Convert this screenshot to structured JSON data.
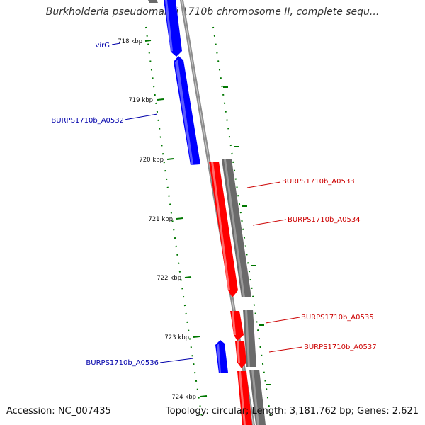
{
  "title": "Burkholderia pseudomallei 1710b chromosome II, complete sequ...",
  "accession": "Accession: NC_007435",
  "summary": "Topology: circular; Length: 3,181,762 bp; Genes: 2,621",
  "colors": {
    "forward": "#ff0000",
    "reverse": "#0000ff",
    "cds": "#6a6a6a",
    "backbone": "#8c8c8c",
    "ticks": "#007700"
  },
  "ticks": [
    "718 kbp",
    "719 kbp",
    "720 kbp",
    "721 kbp",
    "722 kbp",
    "723 kbp",
    "724 kbp"
  ],
  "genes": [
    {
      "label": "virG",
      "strand": "reverse"
    },
    {
      "label": "BURPS1710b_A0532",
      "strand": "reverse"
    },
    {
      "label": "BURPS1710b_A0533",
      "strand": "forward"
    },
    {
      "label": "BURPS1710b_A0534",
      "strand": "forward"
    },
    {
      "label": "BURPS1710b_A0535",
      "strand": "forward"
    },
    {
      "label": "BURPS1710b_A0537",
      "strand": "forward"
    },
    {
      "label": "BURPS1710b_A0536",
      "strand": "reverse"
    }
  ]
}
